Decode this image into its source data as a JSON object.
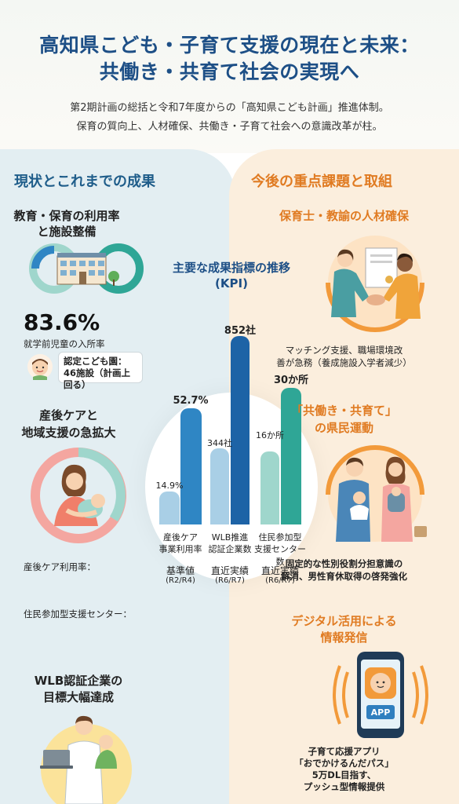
{
  "header": {
    "title_line1": "高知県こども・子育て支援の現在と未来：",
    "title_line2": "共働き・共育て社会の実現へ",
    "subtitle_line1": "第2期計画の総括と令和7年度からの「高知県こども計画」推進体制。",
    "subtitle_line2": "保育の質向上、人材確保、共働き・子育て社会への意識改革が柱。"
  },
  "left": {
    "heading": "現状とこれまでの成果",
    "block1_title1": "教育・保育の利用率",
    "block1_title2": "と施設整備",
    "big_value": "83.6%",
    "big_value_caption": "就学前児童の入所率",
    "bubble_line1": "認定こども園：",
    "bubble_line2": "46施設（計画上回る）",
    "block2_title1": "産後ケアと",
    "block2_title2": "地域支援の急拡大",
    "postnatal_label": "産後ケア利用率：",
    "center_label": "住民参加型支援センター：",
    "block3_title1": "WLB認証企業の",
    "block3_title2": "目標大幅達成"
  },
  "right": {
    "heading": "今後の重点課題と取組",
    "block1_title": "保育士・教諭の人材確保",
    "block1_text1": "マッチング支援、職場環境改",
    "block1_text2": "善が急務（養成施設入学者減少）",
    "block2_title1": "「共働き・共育て」",
    "block2_title2": "の県民運動",
    "block2_text1": "固定的な性別役割分担意識の",
    "block2_text2": "解消、男性育休取得の啓発強化",
    "block3_title1": "デジタル活用による",
    "block3_title2": "情報発信",
    "app_label": "APP",
    "block3_text1": "子育て応援アプリ",
    "block3_text2": "「おでかけるんだパス」",
    "block3_text3": "5万DL目指す、",
    "block3_text4": "プッシュ型情報提供"
  },
  "chart_data": {
    "type": "bar",
    "title": "主要な成果指標の推移",
    "title_sub": "(KPI)",
    "categories": [
      "産後ケア\n事業利用率",
      "WLB推進\n認証企業数",
      "住民参加型\n支援センター数"
    ],
    "category_line1": [
      "産後ケア",
      "WLB推進",
      "住民参加型"
    ],
    "category_line2": [
      "事業利用率",
      "認証企業数",
      "支援センター数"
    ],
    "series": [
      {
        "name": "基準値",
        "name_sub": "(R2/R4)",
        "values": [
          14.9,
          344,
          16
        ],
        "labels": [
          "14.9%",
          "344社",
          "16か所"
        ]
      },
      {
        "name": "直近実績",
        "name_sub": "(R6/R7)",
        "values": [
          52.7,
          852,
          30
        ],
        "labels": [
          "52.7%",
          "852社",
          "30か所"
        ]
      }
    ],
    "bottom_labels": [
      {
        "line1": "基準値",
        "line2": "(R2/R4)"
      },
      {
        "line1": "直近実績",
        "line2": "(R6/R7)"
      },
      {
        "line1": "直近実績",
        "line2": "(R6/R7)"
      }
    ],
    "colors": {
      "baseline": "#a9cfe6",
      "recent_blue": "#2f86c4",
      "recent_dark": "#1d63a6",
      "teal_light": "#9fd6cc",
      "teal_recent": "#2fa696"
    }
  }
}
